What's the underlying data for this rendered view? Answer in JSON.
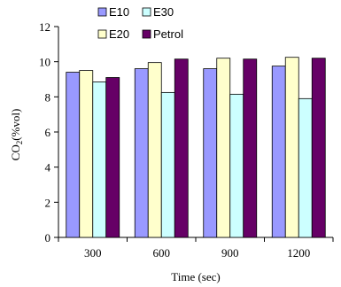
{
  "chart_data": {
    "type": "bar",
    "xlabel": "Time (sec)",
    "ylabel_main": "CO",
    "ylabel_sub": "2",
    "ylabel_rest": "(%vol)",
    "categories": [
      "300",
      "600",
      "900",
      "1200"
    ],
    "ylim": [
      0,
      12
    ],
    "yticks": [
      0,
      2,
      4,
      6,
      8,
      10,
      12
    ],
    "grid": false,
    "legend_position": "top",
    "series": [
      {
        "name": "E10",
        "color": "#9999ff",
        "values": [
          9.4,
          9.6,
          9.6,
          9.75
        ]
      },
      {
        "name": "E20",
        "color": "#ffffcc",
        "values": [
          9.5,
          9.95,
          10.2,
          10.25
        ]
      },
      {
        "name": "E30",
        "color": "#ccffff",
        "values": [
          8.85,
          8.25,
          8.15,
          7.9
        ]
      },
      {
        "name": "Petrol",
        "color": "#660066",
        "values": [
          9.1,
          10.15,
          10.15,
          10.2
        ]
      }
    ]
  }
}
